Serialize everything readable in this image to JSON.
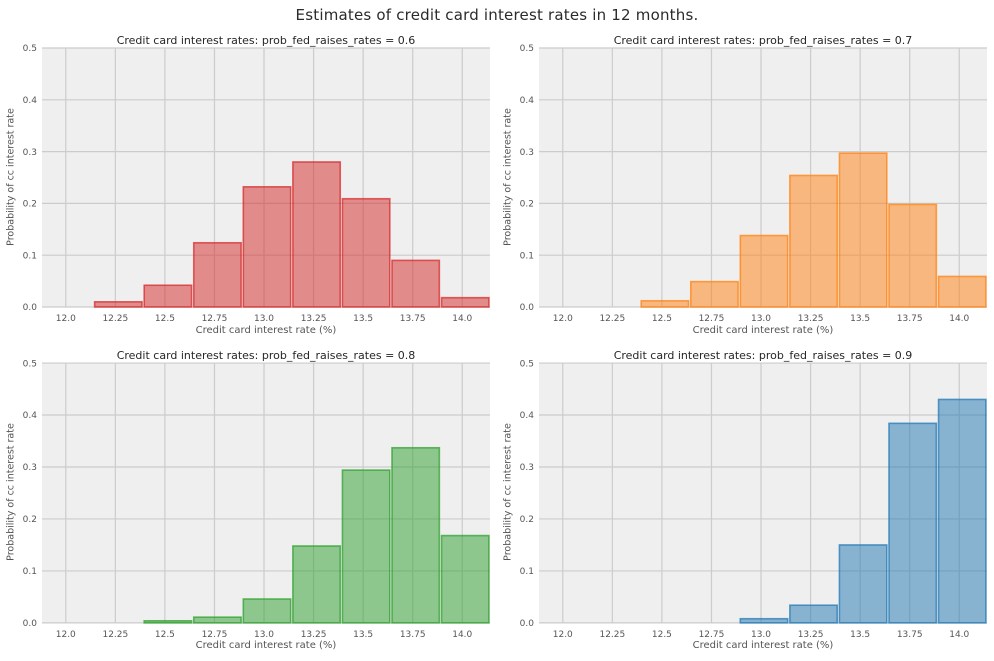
{
  "page_title": "Estimates of credit card interest rates in 12 months.",
  "colors": {
    "figure_bg": "#ffffff",
    "axes_bg": "#efefef",
    "grid": "#cccccc",
    "tick_text": "#555555",
    "title_text": "#262626"
  },
  "chart_data": [
    {
      "type": "bar",
      "subtype": "histogram",
      "title": "Credit card interest rates: prob_fed_raises_rates = 0.6",
      "xlabel": "Credit card interest rate (%)",
      "ylabel": "Probability of cc interest rate",
      "color": "#d62728",
      "fill_alpha": 0.5,
      "edge_alpha": 0.72,
      "bin_start": 12.14,
      "bin_width": 0.25,
      "values": [
        0.01,
        0.042,
        0.124,
        0.232,
        0.28,
        0.209,
        0.09,
        0.018
      ],
      "xlim": [
        11.88,
        14.14
      ],
      "ylim": [
        0,
        0.5
      ],
      "xticks": [
        12.0,
        12.25,
        12.5,
        12.75,
        13.0,
        13.25,
        13.5,
        13.75,
        14.0
      ],
      "xtick_labels": [
        "12.0",
        "12.25",
        "12.5",
        "12.75",
        "13.0",
        "13.25",
        "13.5",
        "13.75",
        "14.0"
      ],
      "yticks": [
        0.0,
        0.1,
        0.2,
        0.3,
        0.4,
        0.5
      ],
      "ytick_labels": [
        "0.0",
        "0.1",
        "0.2",
        "0.3",
        "0.4",
        "0.5"
      ],
      "grid": true,
      "legend": false
    },
    {
      "type": "bar",
      "subtype": "histogram",
      "title": "Credit card interest rates: prob_fed_raises_rates = 0.7",
      "xlabel": "Credit card interest rate (%)",
      "ylabel": "Probability of cc interest rate",
      "color": "#ff7f0e",
      "fill_alpha": 0.5,
      "edge_alpha": 0.72,
      "bin_start": 12.39,
      "bin_width": 0.25,
      "values": [
        0.012,
        0.049,
        0.138,
        0.254,
        0.297,
        0.198,
        0.059
      ],
      "xlim": [
        11.88,
        14.14
      ],
      "ylim": [
        0,
        0.5
      ],
      "xticks": [
        12.0,
        12.25,
        12.5,
        12.75,
        13.0,
        13.25,
        13.5,
        13.75,
        14.0
      ],
      "xtick_labels": [
        "12.0",
        "12.25",
        "12.5",
        "12.75",
        "13.0",
        "13.25",
        "13.5",
        "13.75",
        "14.0"
      ],
      "yticks": [
        0.0,
        0.1,
        0.2,
        0.3,
        0.4,
        0.5
      ],
      "ytick_labels": [
        "0.0",
        "0.1",
        "0.2",
        "0.3",
        "0.4",
        "0.5"
      ],
      "grid": true,
      "legend": false
    },
    {
      "type": "bar",
      "subtype": "histogram",
      "title": "Credit card interest rates: prob_fed_raises_rates = 0.8",
      "xlabel": "Credit card interest rate (%)",
      "ylabel": "Probability of cc interest rate",
      "color": "#2ca02c",
      "fill_alpha": 0.5,
      "edge_alpha": 0.72,
      "bin_start": 12.39,
      "bin_width": 0.25,
      "values": [
        0.004,
        0.011,
        0.046,
        0.148,
        0.294,
        0.337,
        0.168
      ],
      "xlim": [
        11.88,
        14.14
      ],
      "ylim": [
        0,
        0.5
      ],
      "xticks": [
        12.0,
        12.25,
        12.5,
        12.75,
        13.0,
        13.25,
        13.5,
        13.75,
        14.0
      ],
      "xtick_labels": [
        "12.0",
        "12.25",
        "12.5",
        "12.75",
        "13.0",
        "13.25",
        "13.5",
        "13.75",
        "14.0"
      ],
      "yticks": [
        0.0,
        0.1,
        0.2,
        0.3,
        0.4,
        0.5
      ],
      "ytick_labels": [
        "0.0",
        "0.1",
        "0.2",
        "0.3",
        "0.4",
        "0.5"
      ],
      "grid": true,
      "legend": false
    },
    {
      "type": "bar",
      "subtype": "histogram",
      "title": "Credit card interest rates: prob_fed_raises_rates = 0.9",
      "xlabel": "Credit card interest rate (%)",
      "ylabel": "Probability of cc interest rate",
      "color": "#1f77b4",
      "fill_alpha": 0.5,
      "edge_alpha": 0.72,
      "bin_start": 12.89,
      "bin_width": 0.25,
      "values": [
        0.008,
        0.034,
        0.15,
        0.384,
        0.43
      ],
      "xlim": [
        11.88,
        14.14
      ],
      "ylim": [
        0,
        0.5
      ],
      "xticks": [
        12.0,
        12.25,
        12.5,
        12.75,
        13.0,
        13.25,
        13.5,
        13.75,
        14.0
      ],
      "xtick_labels": [
        "12.0",
        "12.25",
        "12.5",
        "12.75",
        "13.0",
        "13.25",
        "13.5",
        "13.75",
        "14.0"
      ],
      "yticks": [
        0.0,
        0.1,
        0.2,
        0.3,
        0.4,
        0.5
      ],
      "ytick_labels": [
        "0.0",
        "0.1",
        "0.2",
        "0.3",
        "0.4",
        "0.5"
      ],
      "grid": true,
      "legend": false
    }
  ]
}
